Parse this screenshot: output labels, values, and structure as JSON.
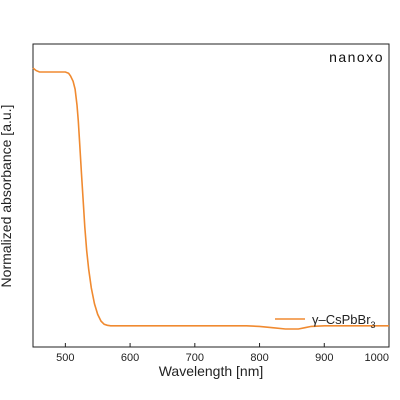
{
  "chart_data": {
    "type": "line",
    "xlabel": "Wavelength [nm]",
    "ylabel": "Normalized absorbance [a.u.]",
    "xlim": [
      450,
      1000
    ],
    "xticks": [
      500,
      600,
      700,
      800,
      900,
      1000
    ],
    "ylim": [
      0,
      1.1
    ],
    "grid": false,
    "legend_position": "bottom-right",
    "series": [
      {
        "name": "γ–CsPbBr3",
        "name_parts": {
          "prefix": "γ–CsPbBr",
          "subscript": "3"
        },
        "color": "#f08a30",
        "x": [
          450,
          455,
          460,
          470,
          480,
          490,
          500,
          505,
          508,
          512,
          515,
          518,
          520,
          522,
          525,
          528,
          530,
          533,
          536,
          540,
          545,
          550,
          555,
          560,
          565,
          570,
          580,
          600,
          650,
          700,
          750,
          780,
          800,
          820,
          840,
          860,
          870,
          880,
          900,
          950,
          1000
        ],
        "y": [
          1.0,
          0.99,
          0.985,
          0.985,
          0.985,
          0.985,
          0.985,
          0.98,
          0.97,
          0.95,
          0.92,
          0.86,
          0.8,
          0.72,
          0.6,
          0.48,
          0.4,
          0.31,
          0.24,
          0.17,
          0.11,
          0.07,
          0.045,
          0.033,
          0.029,
          0.027,
          0.027,
          0.027,
          0.027,
          0.027,
          0.027,
          0.027,
          0.025,
          0.02,
          0.015,
          0.015,
          0.02,
          0.025,
          0.027,
          0.027,
          0.027
        ]
      }
    ]
  },
  "logo": {
    "text": "nanoxo"
  }
}
